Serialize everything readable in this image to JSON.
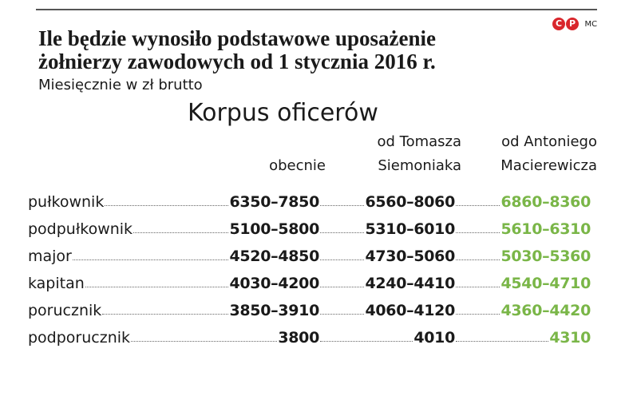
{
  "header": {
    "title_lines": [
      "Ile będzie wynosiło podstawowe uposażenie",
      "żołnierzy zawodowych od 1 stycznia 2016 r."
    ],
    "subtitle": "Miesięcznie w zł brutto",
    "logo": {
      "letters": [
        "C",
        "P"
      ],
      "credit": "MC"
    }
  },
  "table": {
    "title": "Korpus oficerów",
    "columns": [
      [
        "obecnie"
      ],
      [
        "od Tomasza",
        "Siemoniaka"
      ],
      [
        "od Antoniego",
        "Macierewicza"
      ]
    ],
    "rows": [
      [
        "pułkownik",
        "6350–7850",
        "6560–8060",
        "6860–8360"
      ],
      [
        "podpułkownik",
        "5100–5800",
        "5310–6010",
        "5610–6310"
      ],
      [
        "major",
        "4520–4850",
        "4730–5060",
        "5030–5360"
      ],
      [
        "kapitan",
        "4030–4200",
        "4240–4410",
        "4540–4710"
      ],
      [
        "porucznik",
        "3850–3910",
        "4060–4120",
        "4360–4420"
      ],
      [
        "podporucznik",
        "3800",
        "4010",
        "4310"
      ]
    ]
  }
}
